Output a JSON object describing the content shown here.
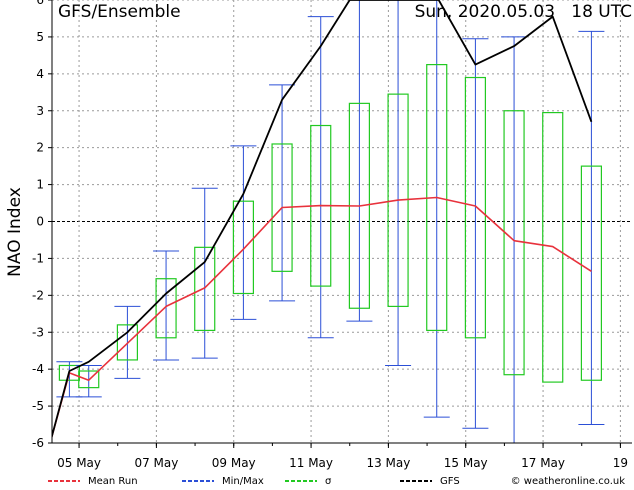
{
  "chart_data": {
    "type": "line",
    "title": "GFS/Ensemble",
    "timestamp": "Sun, 2020.05.03   18 UTC",
    "ylabel": "NAO Index",
    "ylim": [
      -6,
      6
    ],
    "yticks": [
      -6,
      -5,
      -4,
      -3,
      -2,
      -1,
      0,
      1,
      2,
      3,
      4,
      5,
      6
    ],
    "xticks": [
      {
        "day": 5,
        "label": "05 May"
      },
      {
        "day": 7,
        "label": "07 May"
      },
      {
        "day": 9,
        "label": "09 May"
      },
      {
        "day": 11,
        "label": "11 May"
      },
      {
        "day": 13,
        "label": "13 May"
      },
      {
        "day": 15,
        "label": "15 May"
      },
      {
        "day": 17,
        "label": "17 May"
      },
      {
        "day": 19,
        "label": "19"
      }
    ],
    "x_range_days": [
      4.3,
      19.3
    ],
    "x_unit": "day of May 2020",
    "ensemble": [
      {
        "day": 4.75,
        "min": -4.75,
        "max": -3.8,
        "sd_low": -4.3,
        "sd_high": -3.9
      },
      {
        "day": 5.25,
        "min": -4.75,
        "max": -3.9,
        "sd_low": -4.5,
        "sd_high": -4.05
      },
      {
        "day": 6.25,
        "min": -4.25,
        "max": -2.3,
        "sd_low": -3.75,
        "sd_high": -2.8
      },
      {
        "day": 7.25,
        "min": -3.75,
        "max": -0.8,
        "sd_low": -3.15,
        "sd_high": -1.55
      },
      {
        "day": 8.25,
        "min": -3.7,
        "max": 0.9,
        "sd_low": -2.95,
        "sd_high": -0.7
      },
      {
        "day": 9.25,
        "min": -2.65,
        "max": 2.05,
        "sd_low": -1.95,
        "sd_high": 0.55
      },
      {
        "day": 10.25,
        "min": -2.15,
        "max": 3.7,
        "sd_low": -1.35,
        "sd_high": 2.1
      },
      {
        "day": 11.25,
        "min": -3.15,
        "max": 5.55,
        "sd_low": -1.75,
        "sd_high": 2.6
      },
      {
        "day": 12.25,
        "min": -2.7,
        "max": 6.0,
        "sd_low": -2.35,
        "sd_high": 3.2
      },
      {
        "day": 13.25,
        "min": -3.9,
        "max": 6.0,
        "sd_low": -2.3,
        "sd_high": 3.45
      },
      {
        "day": 14.25,
        "min": -5.3,
        "max": 6.0,
        "sd_low": -2.95,
        "sd_high": 4.25
      },
      {
        "day": 15.25,
        "min": -5.6,
        "max": 4.95,
        "sd_low": -3.15,
        "sd_high": 3.9
      },
      {
        "day": 16.25,
        "min": -6.0,
        "max": 5.0,
        "sd_low": -4.15,
        "sd_high": 3.0
      },
      {
        "day": 17.25,
        "min": null,
        "max": null,
        "sd_low": -4.35,
        "sd_high": 2.95
      },
      {
        "day": 18.25,
        "min": -5.5,
        "max": 5.15,
        "sd_low": -4.3,
        "sd_high": 1.5
      }
    ],
    "series": [
      {
        "name": "Mean Run",
        "color": "#e8323c",
        "x": [
          4.25,
          4.75,
          5.25,
          6.25,
          7.25,
          8.25,
          9.25,
          10.25,
          11.25,
          12.25,
          13.25,
          14.25,
          15.25,
          16.25,
          17.25,
          18.25
        ],
        "y": [
          -6.0,
          -4.1,
          -4.3,
          -3.3,
          -2.3,
          -1.8,
          -0.75,
          0.38,
          0.43,
          0.42,
          0.58,
          0.65,
          0.42,
          -0.52,
          -0.68,
          -1.35
        ]
      },
      {
        "name": "GFS",
        "color": "#000000",
        "x": [
          4.25,
          4.75,
          5.25,
          6.25,
          7.25,
          8.25,
          9.25,
          10.25,
          11.25,
          12.0,
          14.3,
          15.25,
          16.25,
          17.25,
          18.25
        ],
        "y": [
          -6.0,
          -4.05,
          -3.8,
          -3.0,
          -1.95,
          -1.1,
          0.75,
          3.3,
          4.75,
          6.0,
          6.0,
          4.25,
          4.75,
          5.55,
          2.7
        ]
      }
    ],
    "legend": [
      {
        "label": "Mean Run",
        "color": "#e8323c",
        "kind": "line"
      },
      {
        "label": "Min/Max",
        "color": "#2b4fd6",
        "kind": "line"
      },
      {
        "label": "σ",
        "color": "#22c922",
        "kind": "line"
      },
      {
        "label": "GFS",
        "color": "#000000",
        "kind": "line"
      }
    ],
    "colors": {
      "minmax": "#2b4fd6",
      "sigma": "#22c922",
      "grid": "#9a9a9a"
    },
    "watermark": "© weatheronline.co.uk",
    "grid": true
  }
}
